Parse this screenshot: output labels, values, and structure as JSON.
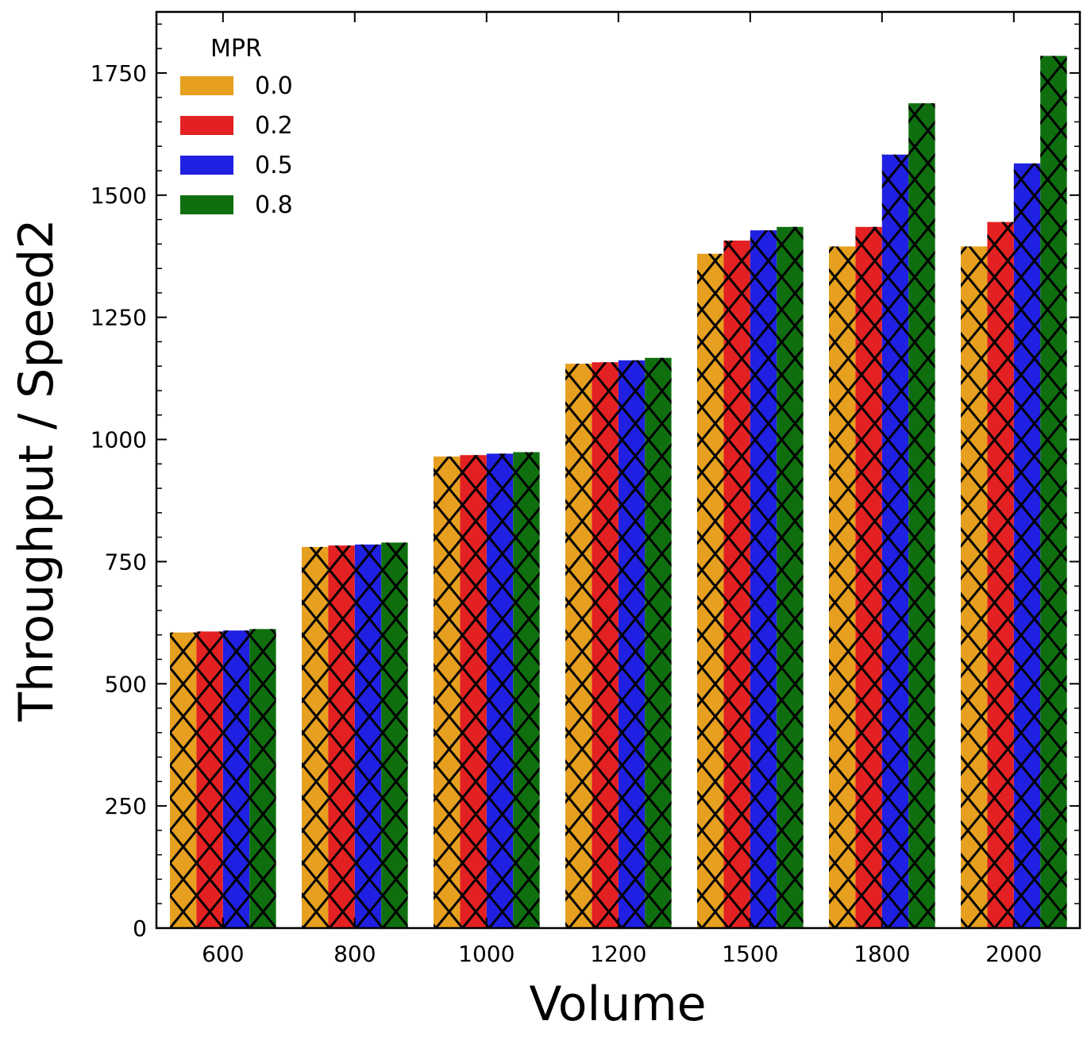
{
  "chart_data": {
    "type": "bar",
    "title": "",
    "xlabel": "Volume",
    "ylabel": "Throughput / Speed2",
    "categories": [
      "600",
      "800",
      "1000",
      "1200",
      "1500",
      "1800",
      "2000"
    ],
    "series": [
      {
        "name": "0.0",
        "color": "#E69F1E",
        "values": [
          605,
          780,
          965,
          1155,
          1380,
          1395,
          1395
        ]
      },
      {
        "name": "0.2",
        "color": "#E32122",
        "values": [
          607,
          783,
          968,
          1158,
          1407,
          1435,
          1445
        ]
      },
      {
        "name": "0.5",
        "color": "#2020E2",
        "values": [
          609,
          785,
          971,
          1162,
          1428,
          1583,
          1565
        ]
      },
      {
        "name": "0.8",
        "color": "#0F6F0F",
        "values": [
          612,
          789,
          974,
          1167,
          1435,
          1688,
          1785
        ]
      }
    ],
    "ylim": [
      0,
      1875
    ],
    "yticks": [
      0,
      250,
      500,
      750,
      1000,
      1250,
      1500,
      1750
    ],
    "legend": {
      "title": "MPR",
      "position": "top-left"
    },
    "hatch": "x",
    "grid": false
  }
}
